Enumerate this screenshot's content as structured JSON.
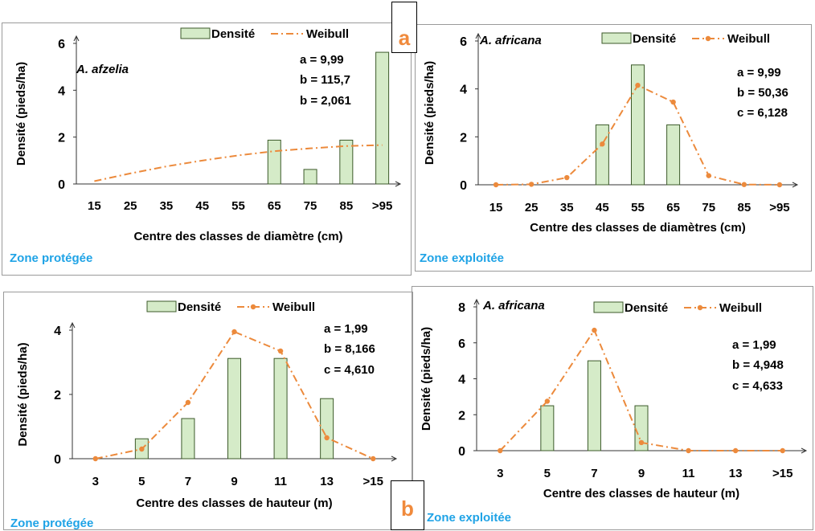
{
  "badges": {
    "a": "a",
    "b": "b"
  },
  "colors": {
    "bar_fill": "#d5ebc8",
    "bar_stroke": "#3c5a2a",
    "weibull": "#ec8a3c",
    "zone": "#1fa3e6"
  },
  "chart_data": [
    {
      "type": "bar",
      "zone": "Zone protégée",
      "species": "A. afzelia",
      "ylabel": "Densité (pieds/ha)",
      "xlabel": "Centre des classes de diamètre (cm)",
      "categories": [
        "15",
        "25",
        "35",
        "45",
        "55",
        "65",
        "75",
        "85",
        ">95"
      ],
      "ylim": [
        0,
        6
      ],
      "yticks": [
        "0",
        "2",
        "4",
        "6"
      ],
      "legend": {
        "bars": "Densité",
        "line": "Weibull",
        "position": "top-right"
      },
      "params": [
        "a = 9,99",
        "b = 115,7",
        "b = 2,061"
      ],
      "series": [
        {
          "name": "Densité",
          "kind": "bar",
          "values": [
            0,
            0,
            0,
            0,
            0,
            1.87,
            0.62,
            1.87,
            5.62
          ]
        },
        {
          "name": "Weibull",
          "kind": "line",
          "markers": false,
          "values": [
            0.12,
            0.45,
            0.75,
            1.0,
            1.22,
            1.4,
            1.52,
            1.62,
            1.66
          ]
        }
      ]
    },
    {
      "type": "bar",
      "zone": "Zone exploitée",
      "species": "A. africana",
      "ylabel": "Densité (pieds/ha)",
      "xlabel": "Centre des classes de diamètres (cm)",
      "categories": [
        "15",
        "25",
        "35",
        "45",
        "55",
        "65",
        "75",
        "85",
        ">95"
      ],
      "ylim": [
        0,
        6
      ],
      "yticks": [
        "0",
        "2",
        "4",
        "6"
      ],
      "legend": {
        "bars": "Densité",
        "line": "Weibull",
        "position": "top-right"
      },
      "params": [
        "a = 9,99",
        "b = 50,36",
        "c = 6,128"
      ],
      "series": [
        {
          "name": "Densité",
          "kind": "bar",
          "values": [
            0,
            0,
            0,
            2.5,
            5.0,
            2.5,
            0,
            0,
            0
          ]
        },
        {
          "name": "Weibull",
          "kind": "line",
          "markers": true,
          "values": [
            0,
            0.02,
            0.3,
            1.7,
            4.15,
            3.45,
            0.38,
            0.01,
            0
          ]
        }
      ]
    },
    {
      "type": "bar",
      "zone": "Zone protégée",
      "species": "",
      "ylabel": "Densité (pieds/ha)",
      "xlabel": "Centre des classes de hauteur (m)",
      "categories": [
        "3",
        "5",
        "7",
        "9",
        "11",
        "13",
        ">15"
      ],
      "ylim": [
        0,
        4
      ],
      "yticks": [
        "0",
        "2",
        "4"
      ],
      "legend": {
        "bars": "Densité",
        "line": "Weibull",
        "position": "top-right"
      },
      "params": [
        "a = 1,99",
        "b =  8,166",
        "c = 4,610"
      ],
      "series": [
        {
          "name": "Densité",
          "kind": "bar",
          "values": [
            0,
            0.62,
            1.25,
            3.12,
            3.12,
            1.87,
            0
          ]
        },
        {
          "name": "Weibull",
          "kind": "line",
          "markers": true,
          "values": [
            0,
            0.3,
            1.75,
            3.95,
            3.35,
            0.65,
            0
          ]
        }
      ]
    },
    {
      "type": "bar",
      "zone": "Zone exploitée",
      "species": "A. africana",
      "ylabel": "Densité (pieds/ha)",
      "xlabel": "Centre des classes de hauteur (m)",
      "categories": [
        "3",
        "5",
        "7",
        "9",
        "11",
        "13",
        ">15"
      ],
      "ylim": [
        0,
        8
      ],
      "yticks": [
        "0",
        "2",
        "4",
        "6",
        "8"
      ],
      "legend": {
        "bars": "Densité",
        "line": "Weibull",
        "position": "top-right"
      },
      "params": [
        "a = 1,99",
        "b =  4,948",
        "c = 4,633"
      ],
      "series": [
        {
          "name": "Densité",
          "kind": "bar",
          "values": [
            0,
            2.5,
            5.0,
            2.5,
            0,
            0,
            0
          ]
        },
        {
          "name": "Weibull",
          "kind": "line",
          "markers": true,
          "values": [
            0,
            2.75,
            6.7,
            0.45,
            0,
            0,
            0
          ]
        }
      ]
    }
  ]
}
